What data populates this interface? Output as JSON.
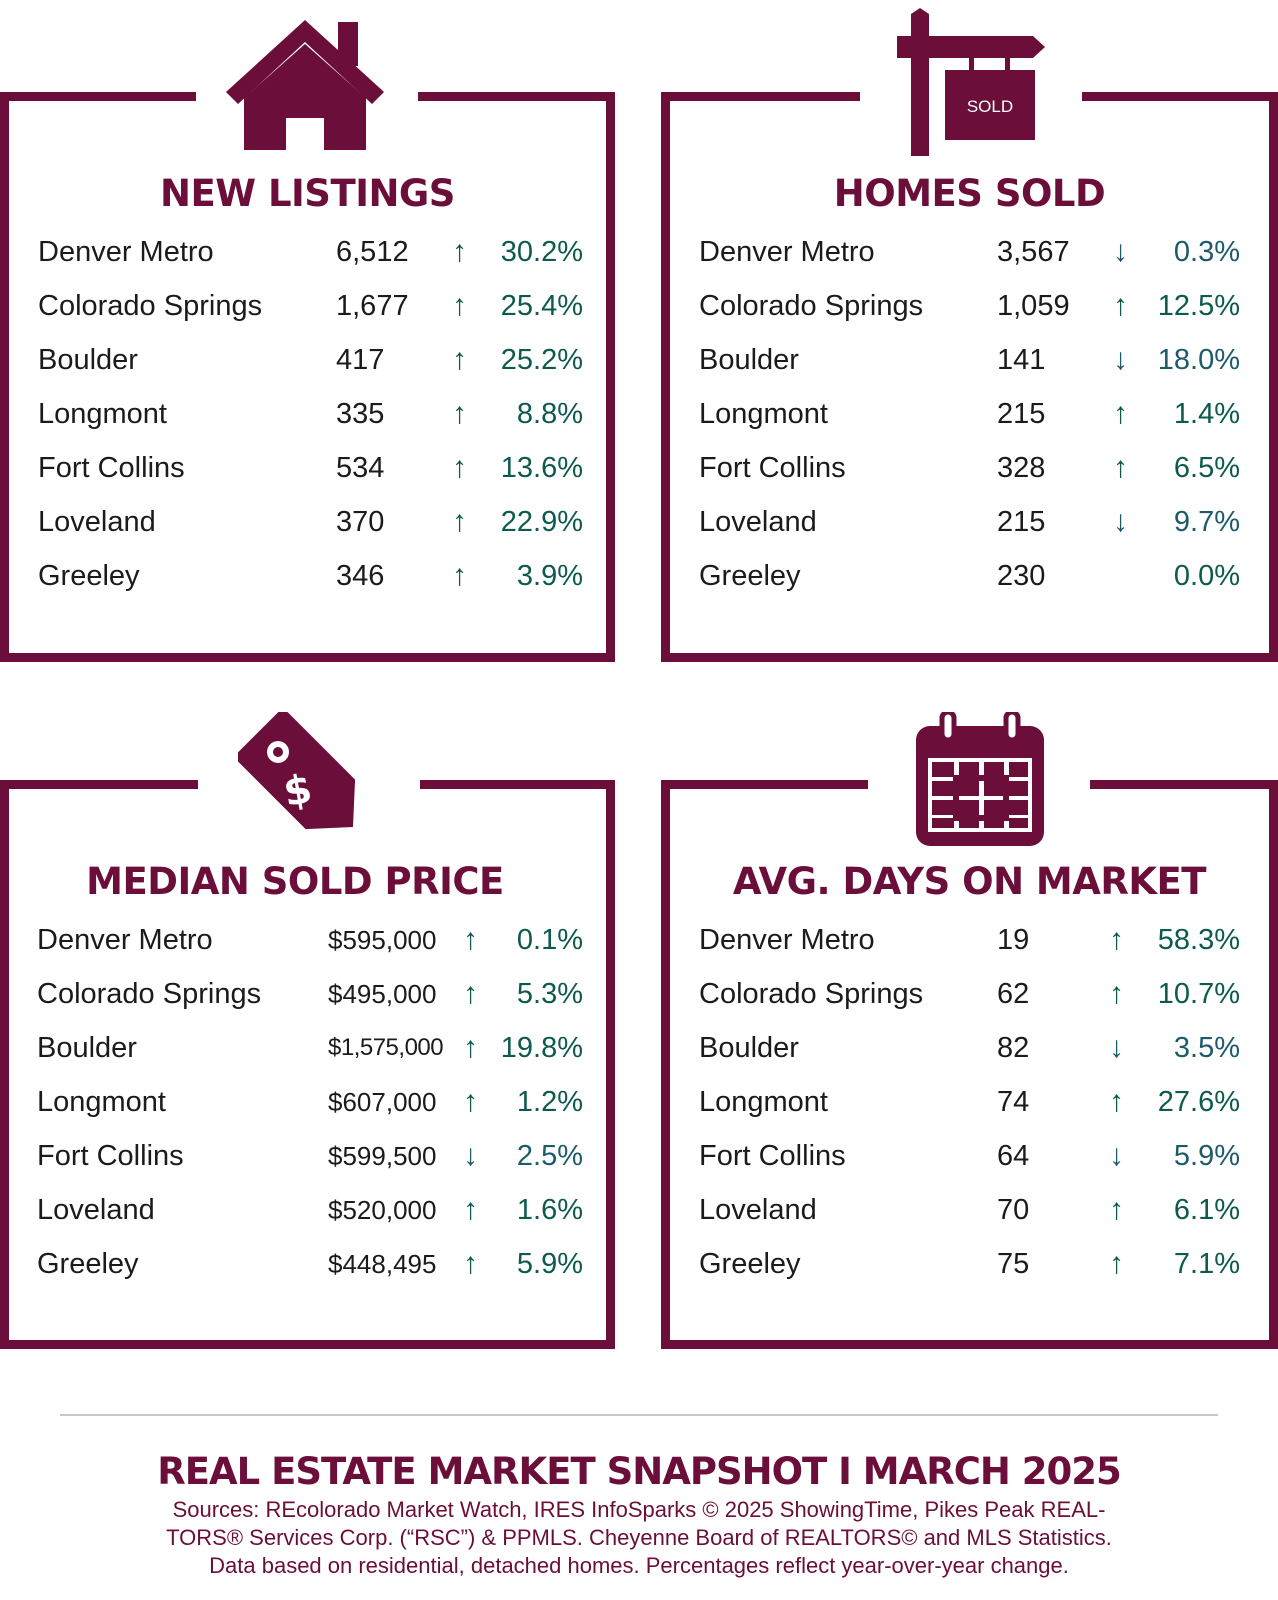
{
  "panels": [
    {
      "title": "NEW LISTINGS",
      "icon": "house-icon",
      "rows": [
        {
          "city": "Denver Metro",
          "value": "6,512",
          "dir": "up",
          "pct": "30.2%"
        },
        {
          "city": "Colorado Springs",
          "value": "1,677",
          "dir": "up",
          "pct": "25.4%"
        },
        {
          "city": "Boulder",
          "value": "417",
          "dir": "up",
          "pct": "25.2%"
        },
        {
          "city": "Longmont",
          "value": "335",
          "dir": "up",
          "pct": "8.8%"
        },
        {
          "city": "Fort Collins",
          "value": "534",
          "dir": "up",
          "pct": "13.6%"
        },
        {
          "city": "Loveland",
          "value": "370",
          "dir": "up",
          "pct": "22.9%"
        },
        {
          "city": "Greeley",
          "value": "346",
          "dir": "up",
          "pct": "3.9%"
        }
      ]
    },
    {
      "title": "HOMES SOLD",
      "icon": "sold-sign-icon",
      "icon_text": "SOLD",
      "rows": [
        {
          "city": "Denver Metro",
          "value": "3,567",
          "dir": "down",
          "pct": "0.3%"
        },
        {
          "city": "Colorado Springs",
          "value": "1,059",
          "dir": "up",
          "pct": "12.5%"
        },
        {
          "city": "Boulder",
          "value": "141",
          "dir": "down",
          "pct": "18.0%"
        },
        {
          "city": "Longmont",
          "value": "215",
          "dir": "up",
          "pct": "1.4%"
        },
        {
          "city": "Fort Collins",
          "value": "328",
          "dir": "up",
          "pct": "6.5%"
        },
        {
          "city": "Loveland",
          "value": "215",
          "dir": "down",
          "pct": "9.7%"
        },
        {
          "city": "Greeley",
          "value": "230",
          "dir": "none",
          "pct": "0.0%"
        }
      ]
    },
    {
      "title": "MEDIAN SOLD PRICE",
      "icon": "price-tag-icon",
      "rows": [
        {
          "city": "Denver Metro",
          "value": "$595,000",
          "dir": "up",
          "pct": "0.1%"
        },
        {
          "city": "Colorado Springs",
          "value": "$495,000",
          "dir": "up",
          "pct": "5.3%"
        },
        {
          "city": "Boulder",
          "value": "$1,575,000",
          "dir": "up",
          "pct": "19.8%"
        },
        {
          "city": "Longmont",
          "value": "$607,000",
          "dir": "up",
          "pct": "1.2%"
        },
        {
          "city": "Fort Collins",
          "value": "$599,500",
          "dir": "down",
          "pct": "2.5%"
        },
        {
          "city": "Loveland",
          "value": "$520,000",
          "dir": "up",
          "pct": "1.6%"
        },
        {
          "city": "Greeley",
          "value": "$448,495",
          "dir": "up",
          "pct": "5.9%"
        }
      ]
    },
    {
      "title": "AVG. DAYS ON MARKET",
      "icon": "calendar-icon",
      "rows": [
        {
          "city": "Denver Metro",
          "value": "19",
          "dir": "up",
          "pct": "58.3%"
        },
        {
          "city": "Colorado Springs",
          "value": "62",
          "dir": "up",
          "pct": "10.7%"
        },
        {
          "city": "Boulder",
          "value": "82",
          "dir": "down",
          "pct": "3.5%"
        },
        {
          "city": "Longmont",
          "value": "74",
          "dir": "up",
          "pct": "27.6%"
        },
        {
          "city": "Fort Collins",
          "value": "64",
          "dir": "down",
          "pct": "5.9%"
        },
        {
          "city": "Loveland",
          "value": "70",
          "dir": "up",
          "pct": "6.1%"
        },
        {
          "city": "Greeley",
          "value": "75",
          "dir": "up",
          "pct": "7.1%"
        }
      ]
    }
  ],
  "footer": {
    "title": "REAL ESTATE MARKET SNAPSHOT I MARCH 2025",
    "line1": "Sources: REcolorado Market Watch, IRES InfoSparks © 2025 ShowingTime, Pikes Peak REAL-",
    "line2": "TORS® Services Corp. (“RSC”) & PPMLS. Cheyenne Board of REALTORS© and MLS Statistics.",
    "line3": "Data based on residential, detached homes. Percentages reflect year-over-year change."
  },
  "colors": {
    "brand": "#6b0e3a",
    "up": "#0e5a4e",
    "down": "#1d5b6b"
  }
}
